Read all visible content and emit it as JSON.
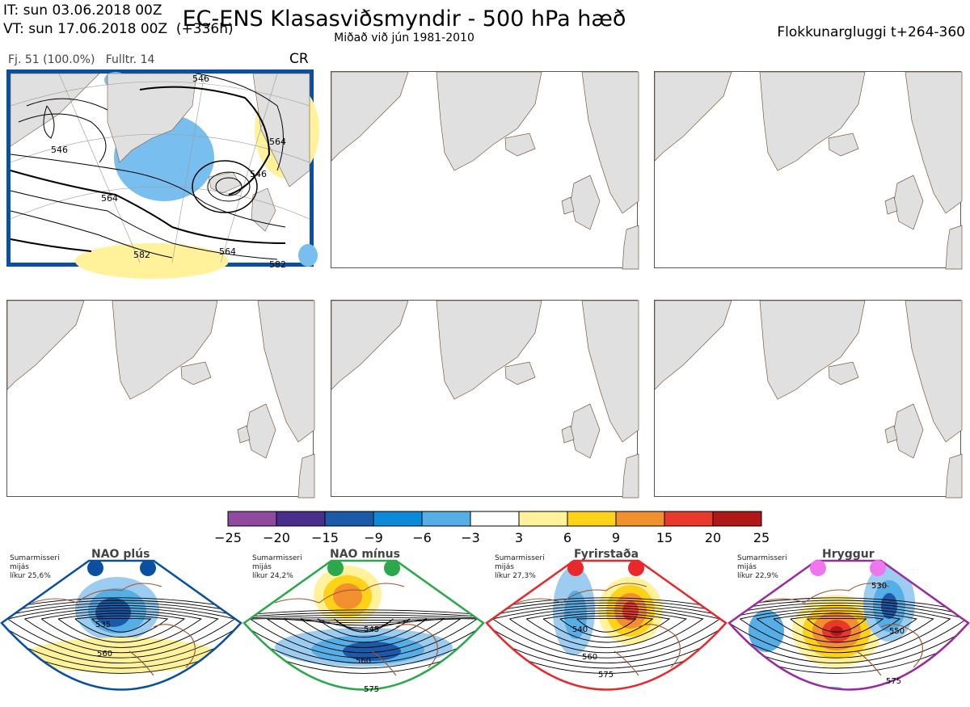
{
  "header": {
    "it_line": "IT: sun 03.06.2018 00Z",
    "vt_line": "VT: sun 17.06.2018 00Z  (+336h)",
    "title": "EC-ENS Klasasviðsmyndir - 500 hPa hæð",
    "subtitle": "Miðað við jún 1981-2010",
    "window": "Flokkunargluggi t+264-360"
  },
  "panel": {
    "info": "Fj. 51 (100.0%)   Fulltr. 14",
    "regime_code": "CR",
    "contour_labels": [
      "546",
      "546",
      "564",
      "546",
      "564",
      "582",
      "564",
      "582"
    ]
  },
  "colors": {
    "land": "#e0e0e0",
    "coast": "#7a5a3a",
    "frame_blue": "#0a50a0",
    "nao_plus": "#0a50a0",
    "nao_minus": "#2aa84a",
    "blocking": "#e8282a",
    "ridge": "#9a2aa0"
  },
  "chart_data": {
    "type": "heatmap",
    "colorbar": {
      "ticks": [
        "−25",
        "−20",
        "−15",
        "−9",
        "−6",
        "−3",
        "3",
        "6",
        "9",
        "15",
        "20",
        "25"
      ],
      "colors": [
        "#8e4a9e",
        "#4a2e8e",
        "#1a5aa8",
        "#0a8ad8",
        "#56aee6",
        "#9ccdf0",
        "#ffffff",
        "#fff29a",
        "#ffd21a",
        "#f29030",
        "#e83a2a",
        "#b01818"
      ]
    },
    "regimes": [
      {
        "name": "NAO plús",
        "season": "Sumarmisseri",
        "type_label": "mijás",
        "prob": "líkur 25,6%",
        "contour_labels": [
          "535",
          "560"
        ],
        "color": "#0a50a0",
        "dot_color": "#0a50a0"
      },
      {
        "name": "NAO mínus",
        "season": "Sumarmisseri",
        "type_label": "mijás",
        "prob": "líkur 24,2%",
        "contour_labels": [
          "545",
          "560",
          "575"
        ],
        "color": "#2aa84a",
        "dot_color": "#2aa84a"
      },
      {
        "name": "Fyrirstaða",
        "season": "Sumarmisseri",
        "type_label": "mijás",
        "prob": "líkur 27,3%",
        "contour_labels": [
          "540",
          "560",
          "575"
        ],
        "color": "#e8282a",
        "dot_color": "#e8282a"
      },
      {
        "name": "Hryggur",
        "season": "Sumarmisseri",
        "type_label": "mijás",
        "prob": "líkur 22,9%",
        "contour_labels": [
          "530",
          "550",
          "575"
        ],
        "color": "#9a2aa0",
        "dot_color": "#ee77ee"
      }
    ]
  }
}
